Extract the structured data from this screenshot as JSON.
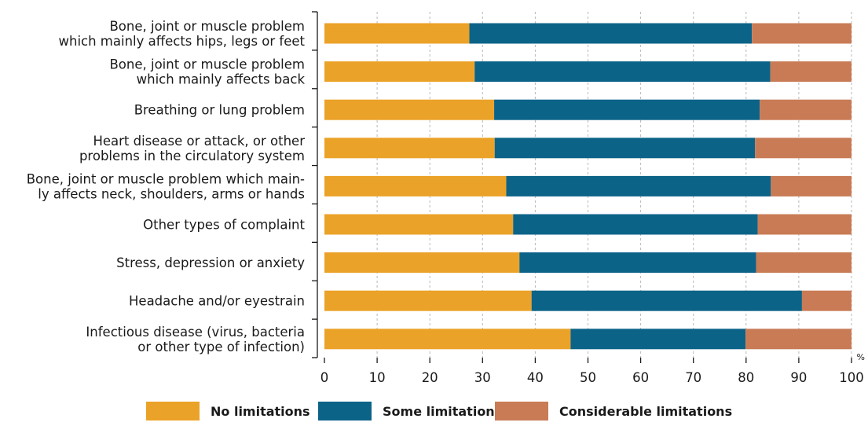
{
  "chart_data": {
    "type": "bar",
    "orientation": "horizontal",
    "stacked": true,
    "categories": [
      [
        "Bone, joint or muscle problem",
        "which mainly affects hips, legs or feet"
      ],
      [
        "Bone, joint or muscle problem",
        "which mainly affects back"
      ],
      [
        "Breathing or lung problem"
      ],
      [
        "Heart disease or attack, or other",
        "problems in the circulatory system"
      ],
      [
        "Bone, joint or muscle problem which main-",
        "ly affects neck, shoulders, arms or hands"
      ],
      [
        "Other types of complaint"
      ],
      [
        "Stress, depression or anxiety"
      ],
      [
        "Headache and/or eyestrain"
      ],
      [
        "Infectious disease (virus, bacteria",
        "or other type of infection)"
      ]
    ],
    "series": [
      {
        "name": "No limitations",
        "color": "#eba228",
        "values": [
          27.5,
          28.5,
          32.2,
          32.3,
          34.5,
          35.8,
          37.0,
          39.3,
          46.7
        ]
      },
      {
        "name": "Some limitations",
        "color": "#0c6388",
        "values": [
          53.6,
          56.1,
          50.4,
          49.4,
          50.2,
          46.4,
          44.9,
          51.3,
          33.2
        ]
      },
      {
        "name": "Considerable limitations",
        "color": "#c97b55",
        "values": [
          18.9,
          15.4,
          17.4,
          18.3,
          15.3,
          17.8,
          18.1,
          9.4,
          20.1
        ]
      }
    ],
    "xlim": [
      0,
      100
    ],
    "xticks": [
      0,
      10,
      20,
      30,
      40,
      50,
      60,
      70,
      80,
      90,
      100
    ],
    "xunit": "%",
    "grid": "vertical-dashed",
    "legend_position": "bottom"
  }
}
